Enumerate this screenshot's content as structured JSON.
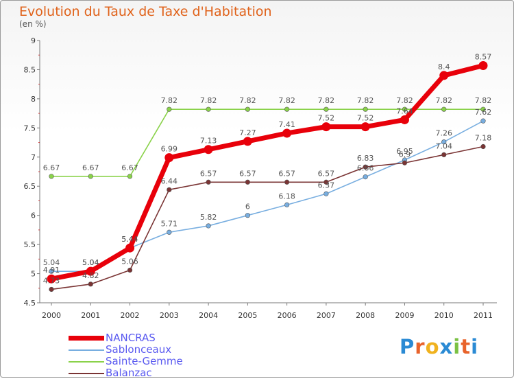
{
  "header": {
    "title": "Evolution du Taux de Taxe d'Habitation",
    "unit": "(en %)"
  },
  "logo": {
    "text": "Proxiti",
    "letter_colors": [
      "#2a8ad4",
      "#e8632b",
      "#f0b21e",
      "#2a8ad4",
      "#7ac143",
      "#e8632b",
      "#2a8ad4"
    ]
  },
  "chart_data": {
    "type": "line",
    "x": [
      "2000",
      "2001",
      "2002",
      "2003",
      "2004",
      "2005",
      "2006",
      "2007",
      "2008",
      "2009",
      "2010",
      "2011"
    ],
    "ylim": [
      4.5,
      9
    ],
    "yticks": [
      4.5,
      5,
      5.5,
      6,
      6.5,
      7,
      7.5,
      8,
      8.5,
      9
    ],
    "ytick_labels": [
      "4.5",
      "5",
      "5.5",
      "6",
      "6.5",
      "7",
      "7.5",
      "8",
      "8.5",
      "9"
    ],
    "grid": false,
    "legend_position": "bottom-left",
    "series": [
      {
        "name": "Sainte-Gemme",
        "color": "#8ad24a",
        "values": [
          6.67,
          6.67,
          6.67,
          7.82,
          7.82,
          7.82,
          7.82,
          7.82,
          7.82,
          7.82,
          7.82,
          7.82
        ],
        "labels": [
          "6.67",
          "6.67",
          "6.67",
          "7.82",
          "7.82",
          "7.82",
          "7.82",
          "7.82",
          "7.82",
          "7.82",
          "7.82",
          "7.82"
        ]
      },
      {
        "name": "Sablonceaux",
        "color": "#78aee0",
        "values": [
          5.04,
          5.04,
          5.44,
          5.71,
          5.82,
          6.0,
          6.18,
          6.37,
          6.66,
          6.95,
          7.26,
          7.62
        ],
        "labels": [
          "5.04",
          "5.04",
          "5.44",
          "5.71",
          "5.82",
          "6",
          "6.18",
          "6.37",
          "6.66",
          "6.95",
          "7.26",
          "7.62"
        ]
      },
      {
        "name": "Balanzac",
        "color": "#7a3434",
        "values": [
          4.73,
          4.82,
          5.06,
          6.44,
          6.57,
          6.57,
          6.57,
          6.57,
          6.83,
          6.9,
          7.04,
          7.18
        ],
        "labels": [
          "4.73",
          "4.82",
          "5.06",
          "6.44",
          "6.57",
          "6.57",
          "6.57",
          "6.57",
          "6.83",
          "6.9",
          "7.04",
          "7.18"
        ]
      },
      {
        "name": "NANCRAS",
        "color": "#e8000a",
        "values": [
          4.91,
          5.04,
          5.44,
          6.99,
          7.13,
          7.27,
          7.41,
          7.52,
          7.52,
          7.64,
          8.4,
          8.57
        ],
        "labels": [
          "4.91",
          "5.04",
          "5.44",
          "6.99",
          "7.13",
          "7.27",
          "7.41",
          "7.52",
          "7.52",
          "7.64",
          "8.4",
          "8.57"
        ]
      }
    ],
    "legend": [
      "NANCRAS",
      "Sablonceaux",
      "Sainte-Gemme",
      "Balanzac"
    ]
  }
}
